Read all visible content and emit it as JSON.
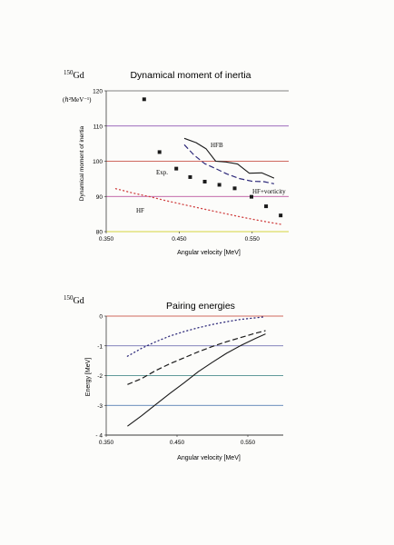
{
  "chart_data": [
    {
      "type": "line",
      "nucleus_mass": "150",
      "nucleus_symbol": "Gd",
      "title": "Dynamical moment of inertia",
      "unit_label": "(ℏ²MeV⁻¹)",
      "xlabel": "Angular velocity [MeV]",
      "ylabel": "Dynamical moment of inertia",
      "xlim": [
        0.35,
        0.6
      ],
      "ylim": [
        80,
        120
      ],
      "x_ticks": [
        {
          "value": 0.35,
          "label": "0.350"
        },
        {
          "value": 0.45,
          "label": "0.450"
        },
        {
          "value": 0.55,
          "label": "0.550"
        }
      ],
      "y_ticks": [
        {
          "value": 80,
          "label": "80"
        },
        {
          "value": 90,
          "label": "90"
        },
        {
          "value": 100,
          "label": "100"
        },
        {
          "value": 110,
          "label": "110"
        },
        {
          "value": 120,
          "label": "120"
        }
      ],
      "grid_colors": {
        "80": "#c8c800",
        "90": "#b03a8f",
        "100": "#c0392b",
        "110": "#7d3aa8",
        "120": "#5a5a5a"
      },
      "series": [
        {
          "name": "HFB",
          "style": "solid",
          "color": "#1a1a1a",
          "x": [
            0.457,
            0.473,
            0.487,
            0.5,
            0.514,
            0.53,
            0.546,
            0.563,
            0.58
          ],
          "y": [
            106.5,
            105.3,
            103.5,
            100.0,
            99.8,
            99.2,
            96.6,
            96.7,
            95.2
          ]
        },
        {
          "name": "HF+vorticity",
          "style": "dashed",
          "color": "#2e2a7a",
          "x": [
            0.457,
            0.47,
            0.485,
            0.5,
            0.515,
            0.532,
            0.55,
            0.566,
            0.58
          ],
          "y": [
            104.7,
            101.8,
            99.3,
            97.9,
            96.4,
            95.1,
            94.3,
            94.2,
            93.6
          ]
        },
        {
          "name": "HF",
          "style": "dotted",
          "color": "#d04040",
          "x": [
            0.363,
            0.386,
            0.41,
            0.434,
            0.458,
            0.482,
            0.507,
            0.531,
            0.556,
            0.58,
            0.592
          ],
          "y": [
            92.2,
            91.0,
            89.9,
            88.7,
            87.6,
            86.5,
            85.4,
            84.3,
            83.3,
            82.4,
            82.0
          ]
        },
        {
          "name": "Exp.",
          "style": "markers",
          "color": "#1a1a1a",
          "x": [
            0.402,
            0.423,
            0.446,
            0.465,
            0.485,
            0.505,
            0.526,
            0.549,
            0.569,
            0.589
          ],
          "y": [
            117.6,
            102.6,
            97.9,
            95.5,
            94.2,
            93.3,
            92.3,
            89.9,
            87.2,
            84.6
          ]
        }
      ]
    },
    {
      "type": "line",
      "nucleus_mass": "150",
      "nucleus_symbol": "Gd",
      "title": "Pairing energies",
      "xlabel": "Angular velocity [MeV]",
      "ylabel": "Energy [MeV]",
      "xlim": [
        0.35,
        0.6
      ],
      "ylim": [
        -4,
        0
      ],
      "x_ticks": [
        {
          "value": 0.35,
          "label": "0.350"
        },
        {
          "value": 0.45,
          "label": "0.450"
        },
        {
          "value": 0.55,
          "label": "0.550"
        }
      ],
      "y_ticks": [
        {
          "value": 0,
          "label": "0"
        },
        {
          "value": -1,
          "label": "-1"
        },
        {
          "value": -2,
          "label": "-2"
        },
        {
          "value": -3,
          "label": "-3"
        },
        {
          "value": -4,
          "label": "- 4"
        }
      ],
      "grid_colors": {
        "0": "#c0392b",
        "-1": "#5a5aa8",
        "-2": "#2e7a7a",
        "-3": "#3a6aa8",
        "-4": "#5a5a5a"
      },
      "series": [
        {
          "style": "solid",
          "color": "#1a1a1a",
          "x": [
            0.38,
            0.4,
            0.42,
            0.44,
            0.46,
            0.48,
            0.5,
            0.52,
            0.54,
            0.56,
            0.575
          ],
          "y": [
            -3.7,
            -3.35,
            -2.97,
            -2.6,
            -2.24,
            -1.87,
            -1.55,
            -1.25,
            -0.99,
            -0.76,
            -0.6
          ]
        },
        {
          "style": "dashed",
          "color": "#1a1a1a",
          "x": [
            0.38,
            0.4,
            0.42,
            0.44,
            0.46,
            0.48,
            0.5,
            0.52,
            0.54,
            0.56,
            0.575
          ],
          "y": [
            -2.3,
            -2.1,
            -1.83,
            -1.6,
            -1.4,
            -1.2,
            -1.02,
            -0.86,
            -0.72,
            -0.58,
            -0.49
          ]
        },
        {
          "style": "dotted",
          "color": "#2e2a7a",
          "x": [
            0.38,
            0.4,
            0.42,
            0.44,
            0.46,
            0.48,
            0.5,
            0.52,
            0.54,
            0.56,
            0.575
          ],
          "y": [
            -1.35,
            -1.08,
            -0.86,
            -0.67,
            -0.52,
            -0.39,
            -0.28,
            -0.19,
            -0.11,
            -0.06,
            -0.02
          ]
        }
      ]
    }
  ]
}
